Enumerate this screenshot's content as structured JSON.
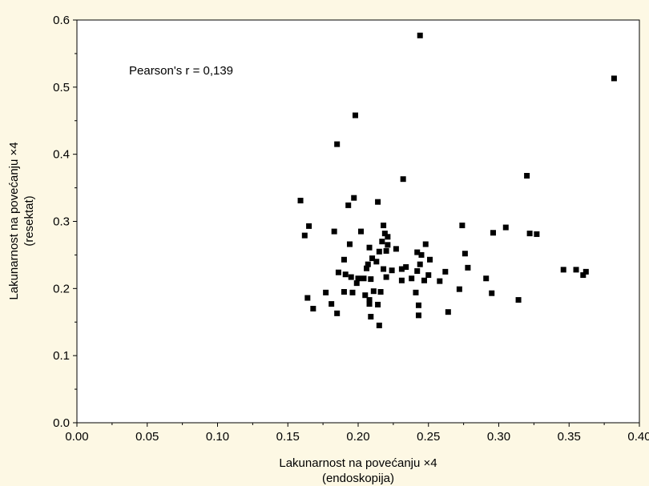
{
  "chart_data": {
    "type": "scatter",
    "annotation": "Pearson's r = 0,139",
    "xlabel": [
      "Lakunarnost na povećanju ×4",
      "(endoskopija)"
    ],
    "ylabel": [
      "Lakunarnost na povećanju ×4",
      "(resektat)"
    ],
    "xlim": [
      0.0,
      0.4
    ],
    "ylim": [
      0.0,
      0.6
    ],
    "x_ticks": [
      "0.00",
      "0.05",
      "0.10",
      "0.15",
      "0.20",
      "0.25",
      "0.30",
      "0.35",
      "0.40"
    ],
    "y_ticks": [
      "0.0",
      "0.1",
      "0.2",
      "0.3",
      "0.4",
      "0.5",
      "0.6"
    ],
    "grid": false,
    "marker_color": "#000000",
    "points": [
      {
        "x": 0.244,
        "y": 0.577
      },
      {
        "x": 0.382,
        "y": 0.513
      },
      {
        "x": 0.198,
        "y": 0.458
      },
      {
        "x": 0.185,
        "y": 0.415
      },
      {
        "x": 0.232,
        "y": 0.363
      },
      {
        "x": 0.32,
        "y": 0.368
      },
      {
        "x": 0.197,
        "y": 0.335
      },
      {
        "x": 0.159,
        "y": 0.331
      },
      {
        "x": 0.214,
        "y": 0.329
      },
      {
        "x": 0.193,
        "y": 0.324
      },
      {
        "x": 0.165,
        "y": 0.293
      },
      {
        "x": 0.162,
        "y": 0.279
      },
      {
        "x": 0.183,
        "y": 0.285
      },
      {
        "x": 0.202,
        "y": 0.285
      },
      {
        "x": 0.218,
        "y": 0.294
      },
      {
        "x": 0.219,
        "y": 0.282
      },
      {
        "x": 0.221,
        "y": 0.277
      },
      {
        "x": 0.274,
        "y": 0.294
      },
      {
        "x": 0.296,
        "y": 0.283
      },
      {
        "x": 0.305,
        "y": 0.291
      },
      {
        "x": 0.322,
        "y": 0.282
      },
      {
        "x": 0.327,
        "y": 0.281
      },
      {
        "x": 0.194,
        "y": 0.266
      },
      {
        "x": 0.217,
        "y": 0.27
      },
      {
        "x": 0.221,
        "y": 0.265
      },
      {
        "x": 0.208,
        "y": 0.261
      },
      {
        "x": 0.215,
        "y": 0.255
      },
      {
        "x": 0.22,
        "y": 0.256
      },
      {
        "x": 0.227,
        "y": 0.259
      },
      {
        "x": 0.242,
        "y": 0.254
      },
      {
        "x": 0.245,
        "y": 0.25
      },
      {
        "x": 0.248,
        "y": 0.266
      },
      {
        "x": 0.276,
        "y": 0.252
      },
      {
        "x": 0.19,
        "y": 0.243
      },
      {
        "x": 0.21,
        "y": 0.245
      },
      {
        "x": 0.213,
        "y": 0.24
      },
      {
        "x": 0.251,
        "y": 0.243
      },
      {
        "x": 0.244,
        "y": 0.236
      },
      {
        "x": 0.207,
        "y": 0.236
      },
      {
        "x": 0.206,
        "y": 0.23
      },
      {
        "x": 0.218,
        "y": 0.229
      },
      {
        "x": 0.224,
        "y": 0.227
      },
      {
        "x": 0.231,
        "y": 0.229
      },
      {
        "x": 0.234,
        "y": 0.232
      },
      {
        "x": 0.242,
        "y": 0.226
      },
      {
        "x": 0.278,
        "y": 0.231
      },
      {
        "x": 0.186,
        "y": 0.224
      },
      {
        "x": 0.191,
        "y": 0.221
      },
      {
        "x": 0.195,
        "y": 0.217
      },
      {
        "x": 0.2,
        "y": 0.215
      },
      {
        "x": 0.204,
        "y": 0.215
      },
      {
        "x": 0.209,
        "y": 0.214
      },
      {
        "x": 0.22,
        "y": 0.217
      },
      {
        "x": 0.231,
        "y": 0.212
      },
      {
        "x": 0.238,
        "y": 0.215
      },
      {
        "x": 0.247,
        "y": 0.212
      },
      {
        "x": 0.25,
        "y": 0.22
      },
      {
        "x": 0.258,
        "y": 0.211
      },
      {
        "x": 0.262,
        "y": 0.225
      },
      {
        "x": 0.291,
        "y": 0.215
      },
      {
        "x": 0.346,
        "y": 0.228
      },
      {
        "x": 0.355,
        "y": 0.228
      },
      {
        "x": 0.36,
        "y": 0.22
      },
      {
        "x": 0.362,
        "y": 0.225
      },
      {
        "x": 0.199,
        "y": 0.208
      },
      {
        "x": 0.211,
        "y": 0.196
      },
      {
        "x": 0.216,
        "y": 0.195
      },
      {
        "x": 0.19,
        "y": 0.195
      },
      {
        "x": 0.196,
        "y": 0.194
      },
      {
        "x": 0.177,
        "y": 0.194
      },
      {
        "x": 0.241,
        "y": 0.194
      },
      {
        "x": 0.205,
        "y": 0.19
      },
      {
        "x": 0.272,
        "y": 0.199
      },
      {
        "x": 0.295,
        "y": 0.193
      },
      {
        "x": 0.164,
        "y": 0.186
      },
      {
        "x": 0.208,
        "y": 0.183
      },
      {
        "x": 0.181,
        "y": 0.177
      },
      {
        "x": 0.208,
        "y": 0.177
      },
      {
        "x": 0.214,
        "y": 0.176
      },
      {
        "x": 0.243,
        "y": 0.175
      },
      {
        "x": 0.168,
        "y": 0.17
      },
      {
        "x": 0.314,
        "y": 0.183
      },
      {
        "x": 0.185,
        "y": 0.163
      },
      {
        "x": 0.209,
        "y": 0.158
      },
      {
        "x": 0.243,
        "y": 0.16
      },
      {
        "x": 0.264,
        "y": 0.165
      },
      {
        "x": 0.215,
        "y": 0.145
      }
    ]
  }
}
